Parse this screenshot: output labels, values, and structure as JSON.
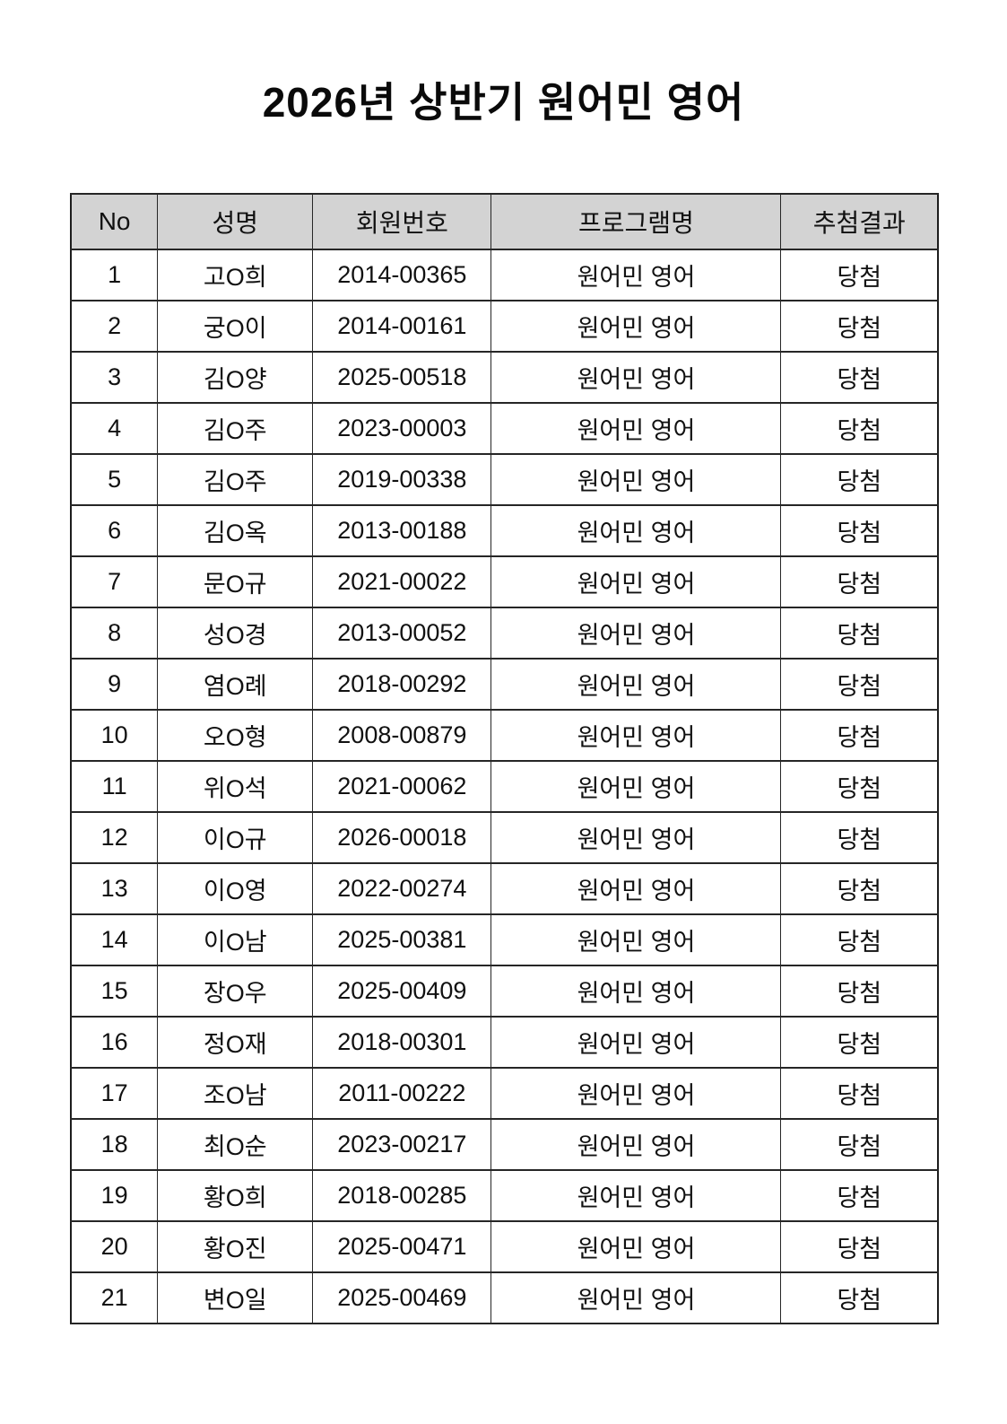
{
  "title": "2026년 상반기 원어민 영어",
  "table": {
    "headers": [
      "No",
      "성명",
      "회원번호",
      "프로그램명",
      "추첨결과"
    ],
    "rows": [
      [
        "1",
        "고O희",
        "2014-00365",
        "원어민 영어",
        "당첨"
      ],
      [
        "2",
        "궁O이",
        "2014-00161",
        "원어민 영어",
        "당첨"
      ],
      [
        "3",
        "김O양",
        "2025-00518",
        "원어민 영어",
        "당첨"
      ],
      [
        "4",
        "김O주",
        "2023-00003",
        "원어민 영어",
        "당첨"
      ],
      [
        "5",
        "김O주",
        "2019-00338",
        "원어민 영어",
        "당첨"
      ],
      [
        "6",
        "김O옥",
        "2013-00188",
        "원어민 영어",
        "당첨"
      ],
      [
        "7",
        "문O규",
        "2021-00022",
        "원어민 영어",
        "당첨"
      ],
      [
        "8",
        "성O경",
        "2013-00052",
        "원어민 영어",
        "당첨"
      ],
      [
        "9",
        "염O례",
        "2018-00292",
        "원어민 영어",
        "당첨"
      ],
      [
        "10",
        "오O형",
        "2008-00879",
        "원어민 영어",
        "당첨"
      ],
      [
        "11",
        "위O석",
        "2021-00062",
        "원어민 영어",
        "당첨"
      ],
      [
        "12",
        "이O규",
        "2026-00018",
        "원어민 영어",
        "당첨"
      ],
      [
        "13",
        "이O영",
        "2022-00274",
        "원어민 영어",
        "당첨"
      ],
      [
        "14",
        "이O남",
        "2025-00381",
        "원어민 영어",
        "당첨"
      ],
      [
        "15",
        "장O우",
        "2025-00409",
        "원어민 영어",
        "당첨"
      ],
      [
        "16",
        "정O재",
        "2018-00301",
        "원어민 영어",
        "당첨"
      ],
      [
        "17",
        "조O남",
        "2011-00222",
        "원어민 영어",
        "당첨"
      ],
      [
        "18",
        "최O순",
        "2023-00217",
        "원어민 영어",
        "당첨"
      ],
      [
        "19",
        "황O희",
        "2018-00285",
        "원어민 영어",
        "당첨"
      ],
      [
        "20",
        "황O진",
        "2025-00471",
        "원어민 영어",
        "당첨"
      ],
      [
        "21",
        "변O일",
        "2025-00469",
        "원어민 영어",
        "당첨"
      ]
    ]
  }
}
